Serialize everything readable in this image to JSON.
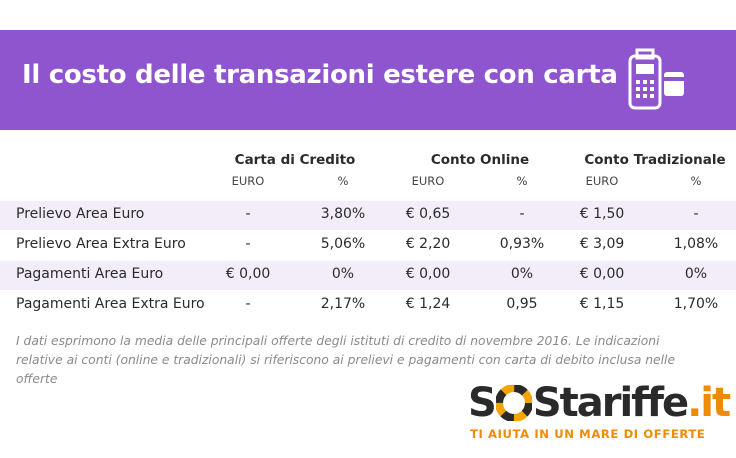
{
  "header": {
    "title": "Il costo delle transazioni estere con carta"
  },
  "table": {
    "groups": [
      "Carta di Credito",
      "Conto Online",
      "Conto Tradizionale"
    ],
    "subheaders": [
      "EURO",
      "%",
      "EURO",
      "%",
      "EURO",
      "%"
    ],
    "rows": [
      {
        "label": "Prelievo Area Euro",
        "cells": [
          "-",
          "3,80%",
          "€ 0,65",
          "-",
          "€ 1,50",
          "-"
        ]
      },
      {
        "label": "Prelievo Area Extra Euro",
        "cells": [
          "-",
          "5,06%",
          "€ 2,20",
          "0,93%",
          "€ 3,09",
          "1,08%"
        ]
      },
      {
        "label": "Pagamenti Area Euro",
        "cells": [
          "€ 0,00",
          "0%",
          "€ 0,00",
          "0%",
          "€ 0,00",
          "0%"
        ]
      },
      {
        "label": "Pagamenti Area Extra Euro",
        "cells": [
          "-",
          "2,17%",
          "€ 1,24",
          "0,95",
          "€ 1,15",
          "1,70%"
        ]
      }
    ]
  },
  "note": "I dati esprimono la media delle principali offerte degli istituti di credito di novembre 2016.  Le indicazioni relative ai conti (online e tradizionali) si riferiscono ai prelievi e pagamenti con carta di debito inclusa nelle offerte",
  "logo": {
    "left": "S",
    "right": "Stariffe",
    "suffix": ".it",
    "tagline": "TI AIUTA IN UN MARE DI OFFERTE"
  }
}
